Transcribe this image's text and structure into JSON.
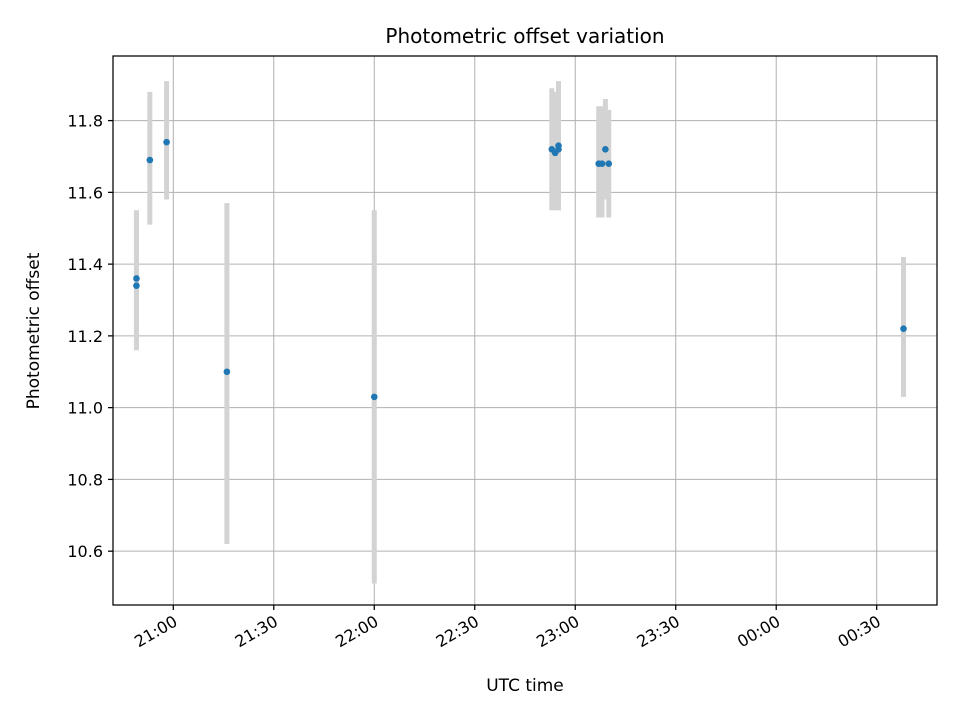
{
  "chart_data": {
    "type": "scatter",
    "title": "Photometric offset variation",
    "xlabel": "UTC time",
    "ylabel": "Photometric offset",
    "xlim": [
      "20:42",
      "00:48 (+1 day)"
    ],
    "x_minutes_range_note": "",
    "ylim": [
      10.45,
      11.98
    ],
    "grid": true,
    "x_ticks": [
      "21:00",
      "21:30",
      "22:00",
      "22:30",
      "23:00",
      "23:30",
      "00:00",
      "00:30"
    ],
    "y_ticks": [
      "10.6",
      "10.8",
      "11.0",
      "11.2",
      "11.4",
      "11.6",
      "11.8"
    ],
    "colors": {
      "points": "#1f77b4",
      "errorbars": "#d3d3d3",
      "grid": "#b0b0b0"
    },
    "series": [
      {
        "points": [
          {
            "x": "20:49",
            "y": 11.34,
            "err_low": 11.16,
            "err_high": 11.53
          },
          {
            "x": "20:49",
            "y": 11.36,
            "err_low": 11.18,
            "err_high": 11.55
          },
          {
            "x": "20:53",
            "y": 11.69,
            "err_low": 11.51,
            "err_high": 11.88
          },
          {
            "x": "20:58",
            "y": 11.74,
            "err_low": 11.58,
            "err_high": 11.91
          },
          {
            "x": "21:16",
            "y": 11.1,
            "err_low": 10.62,
            "err_high": 11.57
          },
          {
            "x": "22:00",
            "y": 11.03,
            "err_low": 10.51,
            "err_high": 11.55
          },
          {
            "x": "22:53",
            "y": 11.72,
            "err_low": 11.55,
            "err_high": 11.89
          },
          {
            "x": "22:54",
            "y": 11.71,
            "err_low": 11.55,
            "err_high": 11.88
          },
          {
            "x": "22:55",
            "y": 11.72,
            "err_low": 11.55,
            "err_high": 11.9
          },
          {
            "x": "22:55",
            "y": 11.73,
            "err_low": 11.55,
            "err_high": 11.91
          },
          {
            "x": "23:07",
            "y": 11.68,
            "err_low": 11.53,
            "err_high": 11.84
          },
          {
            "x": "23:08",
            "y": 11.68,
            "err_low": 11.53,
            "err_high": 11.84
          },
          {
            "x": "23:09",
            "y": 11.72,
            "err_low": 11.58,
            "err_high": 11.86
          },
          {
            "x": "23:10",
            "y": 11.68,
            "err_low": 11.53,
            "err_high": 11.83
          },
          {
            "x": "00:38",
            "y": 11.22,
            "err_low": 11.03,
            "err_high": 11.42
          }
        ]
      }
    ]
  }
}
